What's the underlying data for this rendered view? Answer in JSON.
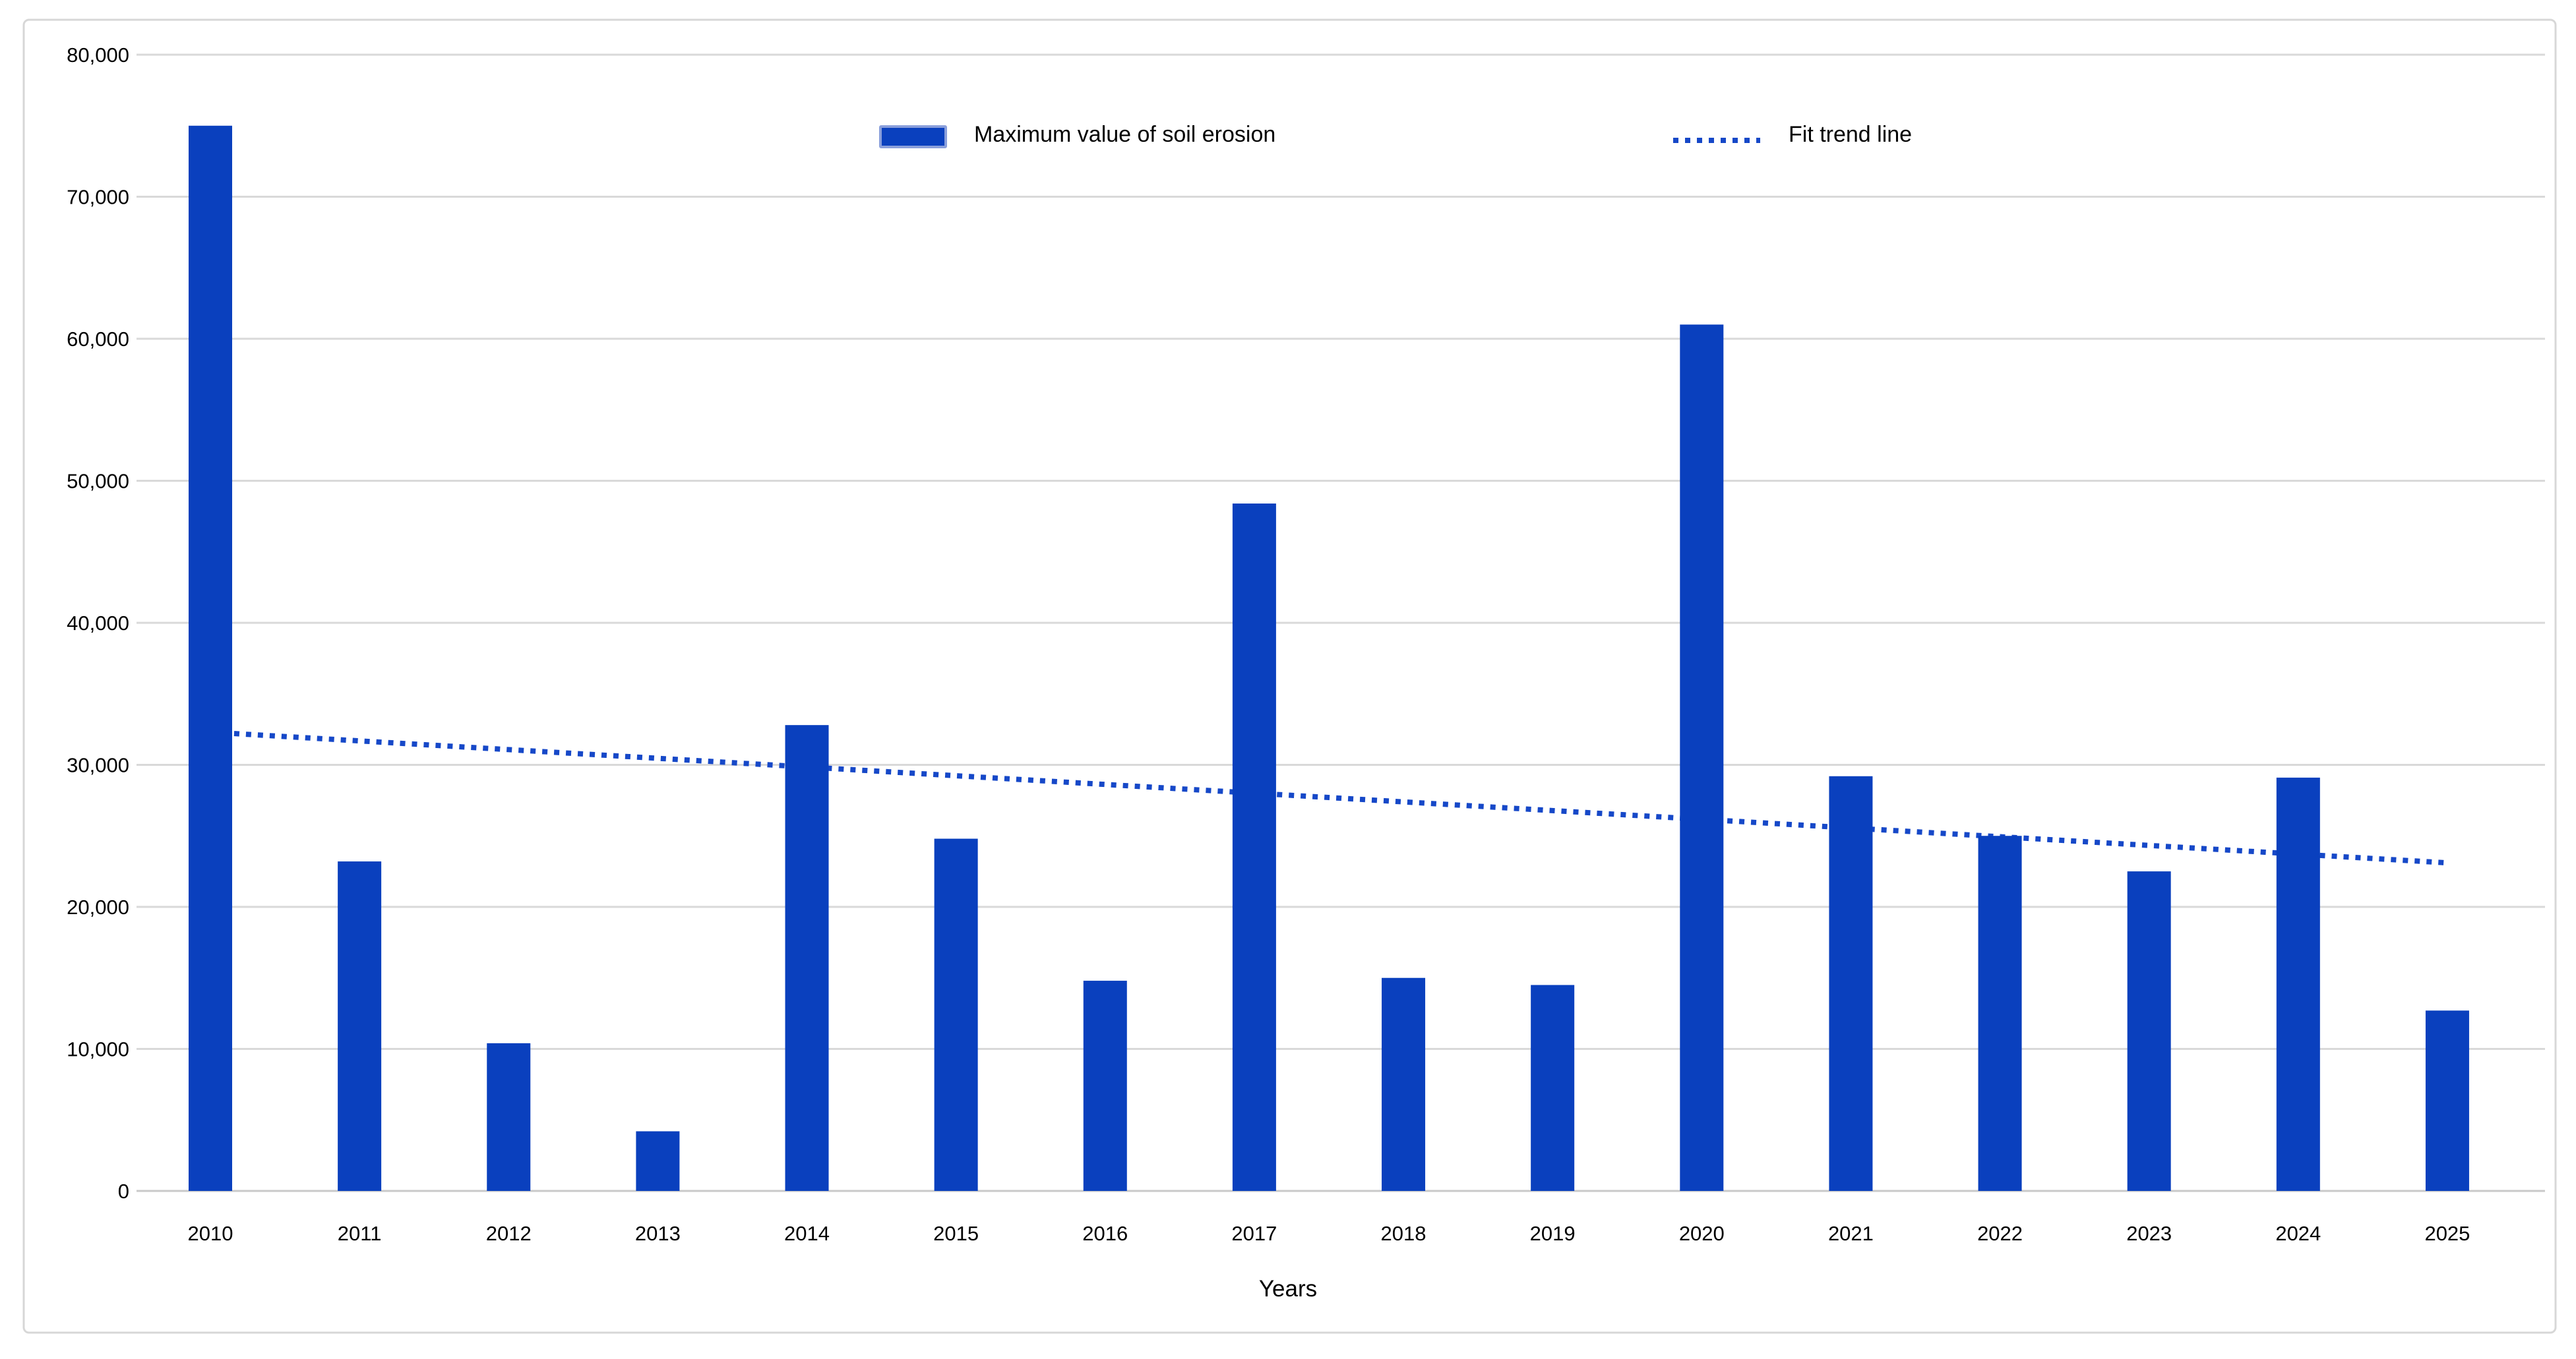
{
  "chart_data": {
    "type": "bar",
    "title": "",
    "categories": [
      "2010",
      "2011",
      "2012",
      "2013",
      "2014",
      "2015",
      "2016",
      "2017",
      "2018",
      "2019",
      "2020",
      "2021",
      "2022",
      "2023",
      "2024",
      "2025"
    ],
    "series": [
      {
        "name": "Maximum value of soil erosion",
        "type": "bar",
        "values": [
          75000,
          23200,
          10400,
          4200,
          32800,
          24800,
          14800,
          48400,
          15000,
          14500,
          61000,
          29200,
          25000,
          22500,
          29100,
          12700
        ]
      },
      {
        "name": "Fit trend line",
        "type": "line",
        "style": "dotted",
        "trend_start_value": 32300,
        "trend_end_value": 23100
      }
    ],
    "xlabel": "Years",
    "ylabel": "",
    "ylim": [
      0,
      80000
    ],
    "yticks": [
      0,
      10000,
      20000,
      30000,
      40000,
      50000,
      60000,
      70000,
      80000
    ],
    "ytick_labels": [
      "0",
      "10,000",
      "20,000",
      "30,000",
      "40,000",
      "50,000",
      "60,000",
      "70,000",
      "80,000"
    ],
    "grid": true,
    "legend_position": "top-center"
  },
  "legend": {
    "bar_label": "Maximum value of soil erosion",
    "trend_label": "Fit trend line"
  },
  "axis": {
    "x_title": "Years"
  },
  "colors": {
    "bar_fill": "#0A40BE",
    "trend_line": "#1648C8",
    "legend_swatch_border": "#8A9FDB",
    "gridline": "#D9D9D9",
    "baseline": "#C9C9C9",
    "frame_border": "#D7D7D7",
    "text": "#000000",
    "background": "#FFFFFF"
  }
}
